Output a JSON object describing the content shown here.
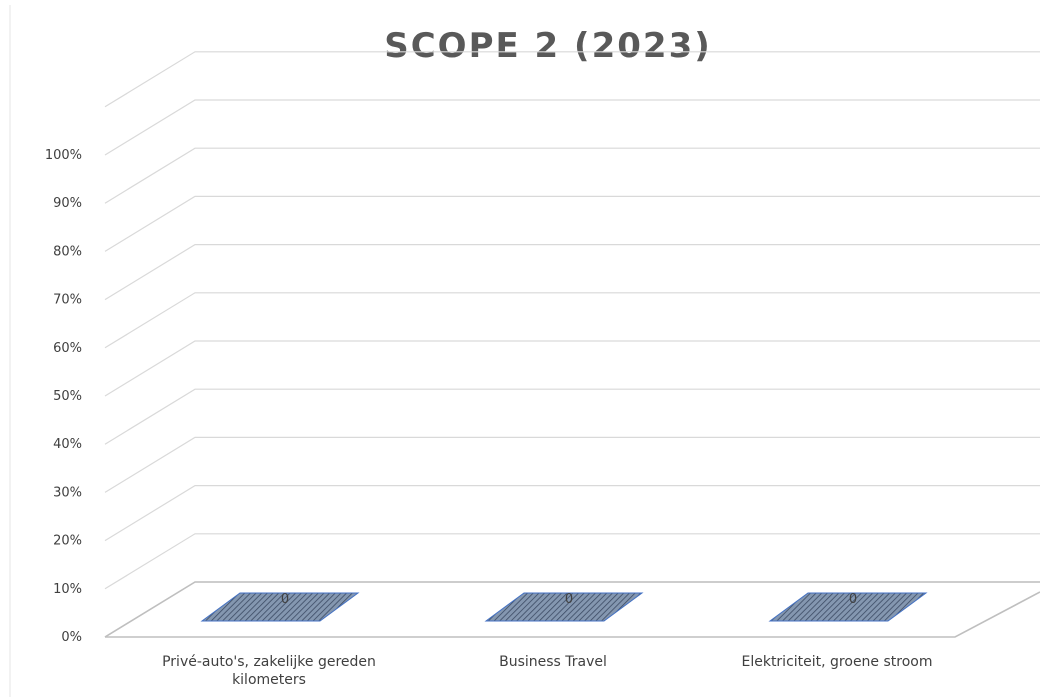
{
  "chart_data": {
    "type": "bar",
    "title": "SCOPE 2 (2023)",
    "categories": [
      [
        "Privé-auto's, zakelijke gereden",
        "kilometers"
      ],
      [
        "Business Travel"
      ],
      [
        "Elektriciteit, groene stroom"
      ]
    ],
    "values": [
      0,
      0,
      0
    ],
    "data_labels": [
      "0",
      "0",
      "0"
    ],
    "yticks": [
      "0%",
      "10%",
      "20%",
      "30%",
      "40%",
      "50%",
      "60%",
      "70%",
      "80%",
      "90%",
      "100%"
    ],
    "ylim": [
      0,
      1.1
    ],
    "grid": true,
    "legend": "none",
    "style": "3d",
    "colors": {
      "bar_fill": "#8497b0",
      "bar_stroke": "#4472c4",
      "hatch": "#3b4a63"
    }
  }
}
